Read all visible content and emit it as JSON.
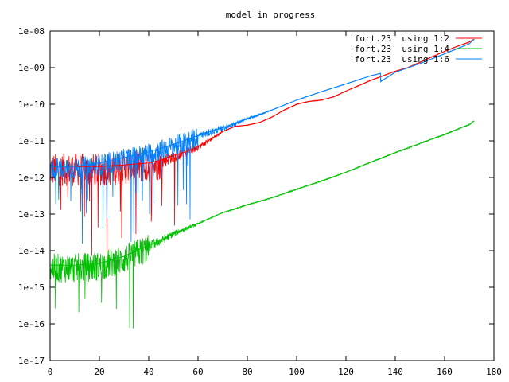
{
  "chart_data": {
    "type": "line",
    "title": "model in progress",
    "xlabel": "",
    "ylabel": "",
    "x_range": [
      0,
      180
    ],
    "y_range": [
      1e-17,
      1e-08
    ],
    "y_scale": "log",
    "grid": false,
    "legend_placement": "top-right",
    "x_ticks": [
      "0",
      "20",
      "40",
      "60",
      "80",
      "100",
      "120",
      "140",
      "160",
      "180"
    ],
    "y_ticks": [
      "1e-08",
      "1e-09",
      "1e-10",
      "1e-11",
      "1e-12",
      "1e-13",
      "1e-14",
      "1e-15",
      "1e-16",
      "1e-17"
    ],
    "series": [
      {
        "name": "'fort.23' using 1:2",
        "color": "#ff0000",
        "x": [
          0,
          10,
          20,
          30,
          40,
          45,
          50,
          55,
          60,
          65,
          70,
          75,
          80,
          85,
          90,
          95,
          100,
          105,
          110,
          115,
          120,
          125,
          130,
          135,
          140,
          145,
          150,
          155,
          160,
          165,
          170,
          172
        ],
        "y": [
          2e-12,
          2e-12,
          2e-12,
          2.2e-12,
          2.5e-12,
          3e-12,
          4e-12,
          5e-12,
          7e-12,
          1.1e-11,
          1.8e-11,
          2.5e-11,
          2.7e-11,
          3.2e-11,
          4.5e-11,
          7e-11,
          1e-10,
          1.2e-10,
          1.3e-10,
          1.6e-10,
          2.3e-10,
          3.2e-10,
          4.5e-10,
          6e-10,
          8e-10,
          1e-09,
          1.4e-09,
          2e-09,
          2.8e-09,
          3.8e-09,
          5e-09,
          6e-09
        ]
      },
      {
        "name": "'fort.23' using 1:4",
        "color": "#00c000",
        "x": [
          0,
          10,
          20,
          30,
          35,
          40,
          45,
          50,
          60,
          70,
          80,
          90,
          100,
          110,
          120,
          130,
          140,
          150,
          160,
          170,
          172
        ],
        "y": [
          4e-15,
          4e-15,
          4.5e-15,
          7e-15,
          1e-14,
          1.4e-14,
          2e-14,
          3e-14,
          5.5e-14,
          1.1e-13,
          1.8e-13,
          2.8e-13,
          4.8e-13,
          8e-13,
          1.4e-12,
          2.6e-12,
          4.8e-12,
          8.5e-12,
          1.5e-11,
          2.8e-11,
          3.5e-11
        ]
      },
      {
        "name": "'fort.23' using 1:6",
        "color": "#0080ff",
        "x": [
          0,
          10,
          20,
          30,
          40,
          50,
          60,
          70,
          80,
          90,
          100,
          110,
          120,
          130,
          134,
          134.1,
          140,
          150,
          160,
          170,
          172
        ],
        "y": [
          2e-12,
          2e-12,
          2.5e-12,
          3.5e-12,
          5e-12,
          8e-12,
          1.4e-11,
          2.3e-11,
          4e-11,
          7e-11,
          1.3e-10,
          2.2e-10,
          3.6e-10,
          6e-10,
          7e-10,
          4.2e-10,
          7.5e-10,
          1.3e-09,
          2.4e-09,
          4.5e-09,
          6e-09
        ]
      }
    ]
  }
}
